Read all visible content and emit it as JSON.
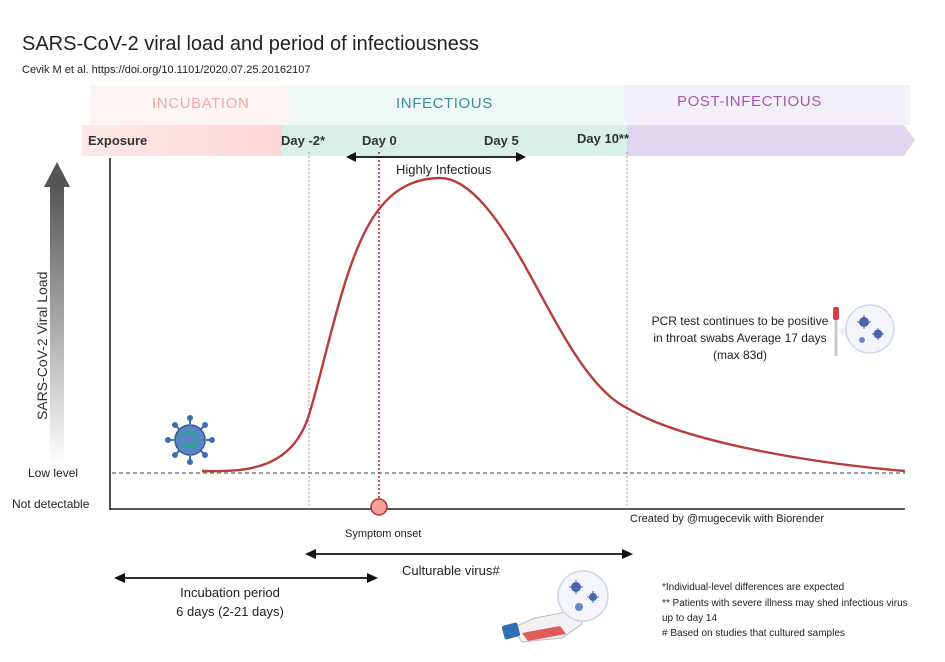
{
  "title": "SARS-CoV-2 viral load and period of infectiousness",
  "citation": "Cevik M et al. https://doi.org/10.1101/2020.07.25.20162107",
  "phases": {
    "incubation": "INCUBATION",
    "infectious": "INFECTIOUS",
    "post_infectious": "POST-INFECTIOUS"
  },
  "timeline": {
    "exposure": "Exposure",
    "day_minus2": "Day -2*",
    "day_0": "Day 0",
    "day_5": "Day 5",
    "day_10": "Day 10**"
  },
  "highly_infectious": "Highly Infectious",
  "y_axis": {
    "label": "SARS-CoV-2 Viral Load",
    "low_level": "Low level",
    "not_detectable": "Not detectable"
  },
  "pcr_note": "PCR test continues to be positive in throat swabs Average 17 days (max 83d)",
  "created_by": "Created by @mugecevik with Biorender",
  "symptom_onset": "Symptom onset",
  "culturable_virus": "Culturable virus#",
  "incubation_period": {
    "line1": "Incubation period",
    "line2": "6 days (2-21 days)"
  },
  "footnotes": {
    "n1": "*Individual-level differences are expected",
    "n2a": "** Patients with severe illness may shed infectious virus",
    "n2b": "up to day 14",
    "n3": "# Based on studies that cultured samples"
  },
  "icons": [
    "virus-icon",
    "swab-icon",
    "culture-flask-icon",
    "magnifier-virus-icon"
  ],
  "colors": {
    "curve": "#b83c3c",
    "incubation_band": "#fbe3e3",
    "infectious_band": "#dff1ec",
    "post_band": "#e6e0f2",
    "symptom_marker": "#f2a0a0"
  }
}
